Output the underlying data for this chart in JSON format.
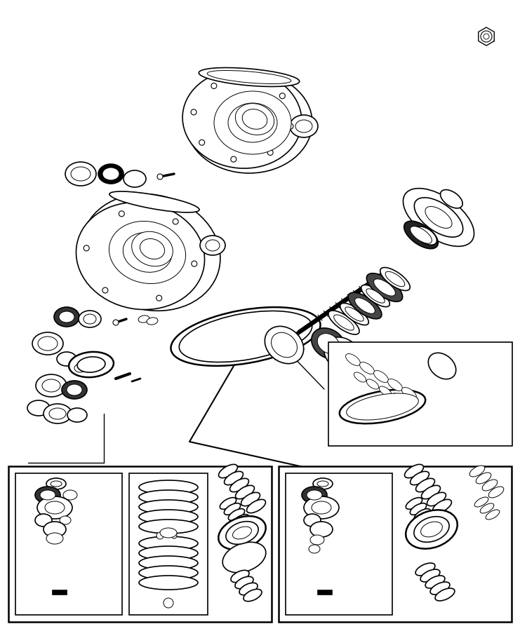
{
  "bg_color": "#ffffff",
  "line_color": "#000000",
  "fig_width": 7.41,
  "fig_height": 9.0,
  "dpi": 100
}
